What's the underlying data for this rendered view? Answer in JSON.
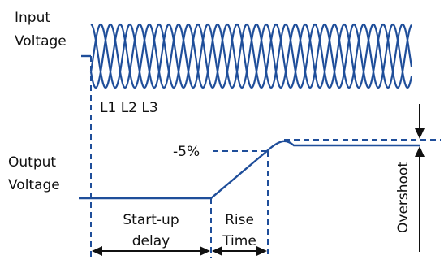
{
  "colors": {
    "waveform": "#1f4e9a",
    "dashed": "#1f4e9a",
    "arrow": "#111111",
    "text": "#111111",
    "background": "#ffffff"
  },
  "labels": {
    "input_line1": "Input",
    "input_line2": "Voltage",
    "phases": "L1 L2 L3",
    "output_line1": "Output",
    "output_line2": "Voltage",
    "percent": "-5%",
    "startup_line1": "Start-up",
    "startup_line2": "delay",
    "rise_line1": "Rise",
    "rise_line2": "Time",
    "overshoot": "Overshoot"
  }
}
